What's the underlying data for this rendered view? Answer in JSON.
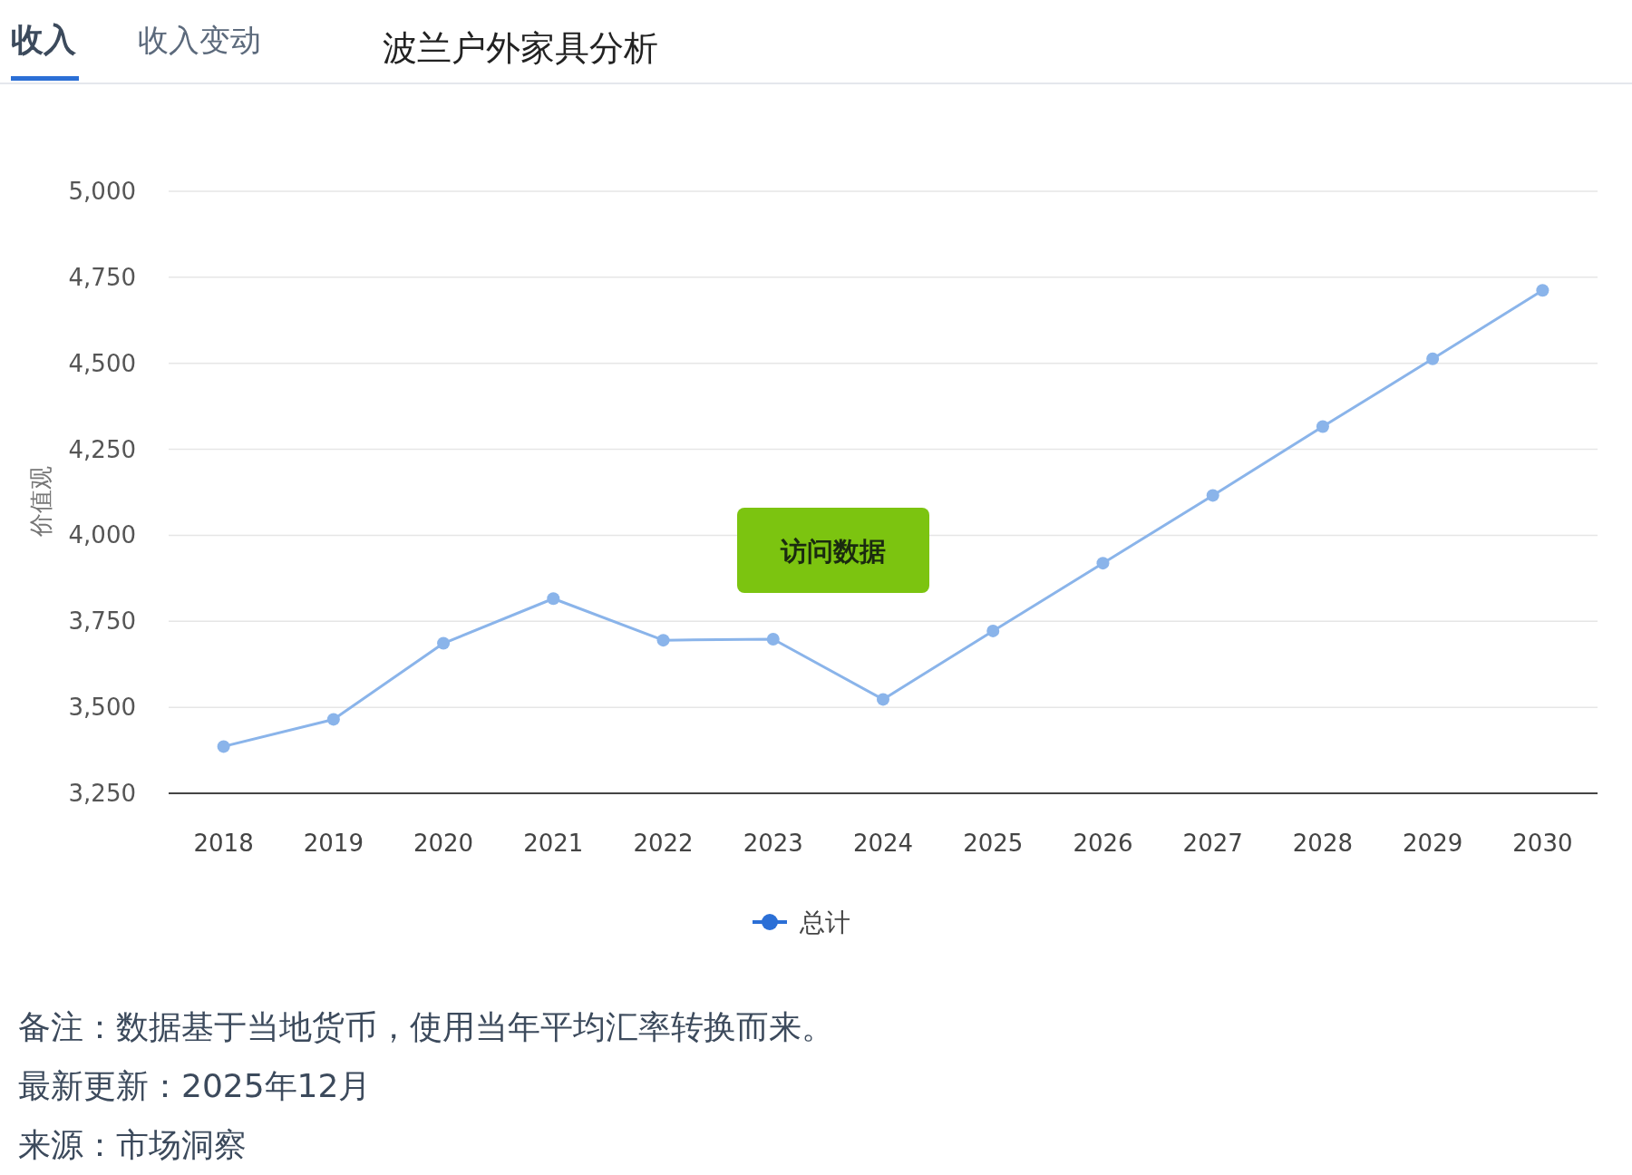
{
  "chart_data": {
    "type": "line",
    "title": "波兰户外家具分析",
    "annotations": [
      "收入",
      "收入变动",
      "访问数据",
      "备注：数据基于当地货币，使用当年平均汇率转换而来。",
      "最新更新：2025年12月",
      "来源：市场洞察"
    ],
    "categories": [
      "2018",
      "2019",
      "2020",
      "2021",
      "2022",
      "2023",
      "2024",
      "2025",
      "2026",
      "2027",
      "2028",
      "2029",
      "2030"
    ],
    "series": [
      {
        "name": "总计",
        "color": "#8ab4ea",
        "values": [
          3386,
          3465,
          3686,
          3816,
          3695,
          3698,
          3523,
          3722,
          3919,
          4116,
          4316,
          4513,
          4712
        ]
      }
    ],
    "ylabel": "价值观",
    "ylim": [
      3250,
      5000
    ],
    "yticks": [
      {
        "value": 3250,
        "label": "3,250"
      },
      {
        "value": 3500,
        "label": "3,500"
      },
      {
        "value": 3750,
        "label": "3,750"
      },
      {
        "value": 4000,
        "label": "4,000"
      },
      {
        "value": 4250,
        "label": "4,250"
      },
      {
        "value": 4500,
        "label": "4,500"
      },
      {
        "value": 4750,
        "label": "4,750"
      },
      {
        "value": 5000,
        "label": "5,000"
      }
    ],
    "grid": "y",
    "legend": "bottom",
    "marker": "circle",
    "line_style": "solid"
  }
}
